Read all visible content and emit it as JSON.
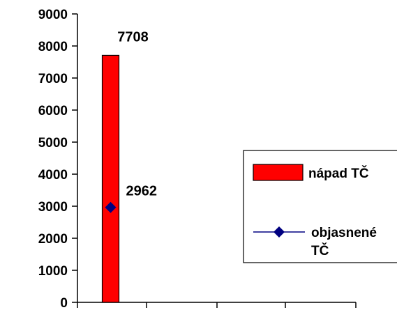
{
  "chart_data": {
    "type": "bar",
    "categories": [
      "",
      "",
      "",
      ""
    ],
    "series": [
      {
        "name": "nápad TČ",
        "kind": "bar",
        "color": "#ff0000",
        "values": [
          7708,
          null,
          null,
          null
        ]
      },
      {
        "name": "objasnené TČ",
        "kind": "line-marker",
        "color": "#000080",
        "values": [
          2962,
          null,
          null,
          null
        ]
      }
    ],
    "data_labels": [
      "7708",
      "2962"
    ],
    "ylim": [
      0,
      9000
    ],
    "yticks": [
      "0",
      "1000",
      "2000",
      "3000",
      "4000",
      "5000",
      "6000",
      "7000",
      "8000",
      "9000"
    ],
    "legend_position": "right",
    "legend": [
      {
        "label": "nápad TČ",
        "symbol": "bar"
      },
      {
        "label_line1": "objasnené",
        "label_line2": "TČ",
        "symbol": "line-marker"
      }
    ],
    "grid": false
  }
}
